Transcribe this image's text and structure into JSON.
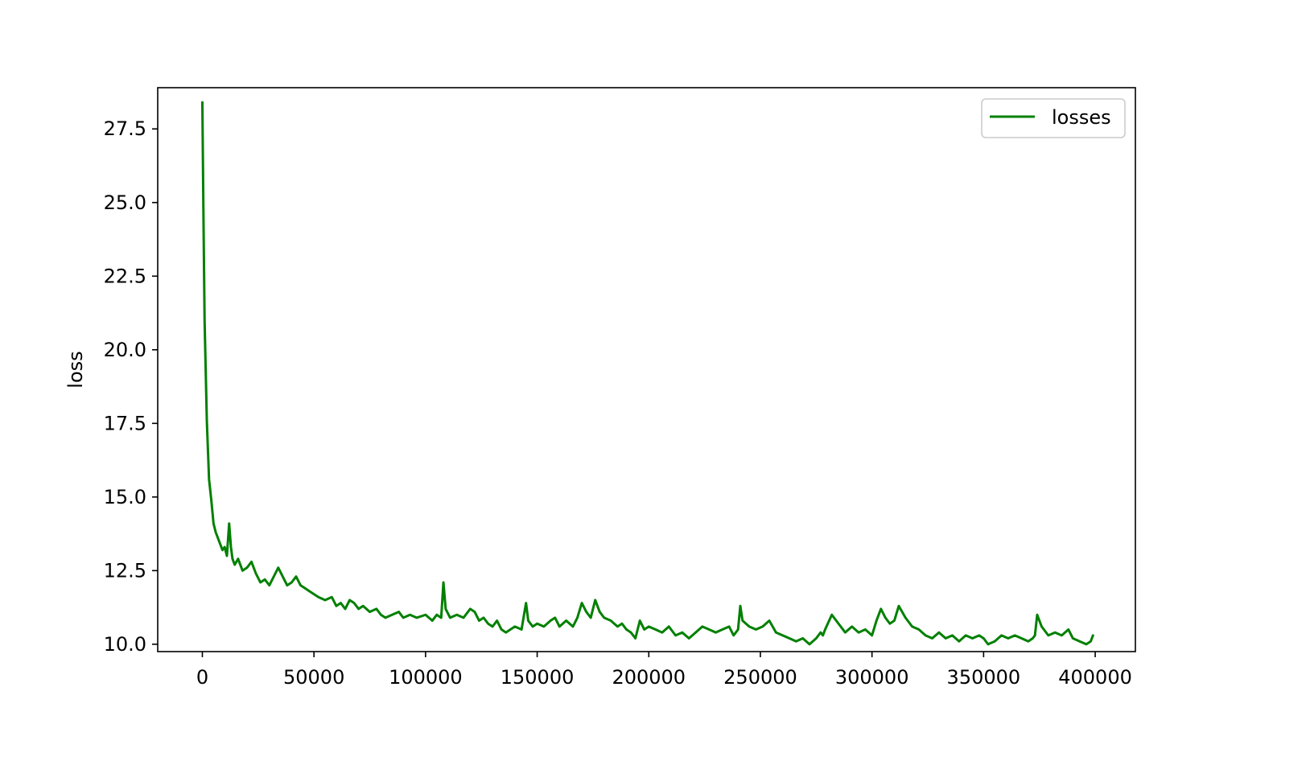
{
  "chart_data": {
    "type": "line",
    "title": "",
    "xlabel": "",
    "ylabel": "loss",
    "xlim": [
      -20000,
      418000
    ],
    "ylim": [
      9.75,
      28.9
    ],
    "x_ticks": [
      0,
      50000,
      100000,
      150000,
      200000,
      250000,
      300000,
      350000,
      400000
    ],
    "x_tick_labels": [
      "0",
      "50000",
      "100000",
      "150000",
      "200000",
      "250000",
      "300000",
      "350000",
      "400000"
    ],
    "y_ticks": [
      10.0,
      12.5,
      15.0,
      17.5,
      20.0,
      22.5,
      25.0,
      27.5
    ],
    "y_tick_labels": [
      "10.0",
      "12.5",
      "15.0",
      "17.5",
      "20.0",
      "22.5",
      "25.0",
      "27.5"
    ],
    "grid": false,
    "legend_position": "top-right",
    "series": [
      {
        "name": "losses",
        "color": "#008000",
        "x": [
          0,
          500,
          1000,
          1500,
          2000,
          2500,
          3000,
          4000,
          5000,
          6000,
          7000,
          8000,
          9000,
          10000,
          11000,
          12000,
          12800,
          13500,
          14500,
          16000,
          18000,
          20000,
          22000,
          24000,
          26000,
          28000,
          30000,
          32000,
          34000,
          36000,
          38000,
          40000,
          42000,
          44000,
          46000,
          48000,
          50000,
          52000,
          55000,
          58000,
          60000,
          62000,
          64000,
          66000,
          68000,
          70000,
          72000,
          75000,
          78000,
          80000,
          82000,
          85000,
          88000,
          90000,
          93000,
          96000,
          100000,
          103000,
          105000,
          107000,
          108000,
          109000,
          111000,
          114000,
          117000,
          120000,
          122000,
          124000,
          126000,
          128000,
          130000,
          132000,
          134000,
          136000,
          138000,
          140000,
          143000,
          145000,
          146000,
          148000,
          150000,
          153000,
          156000,
          158000,
          160000,
          163000,
          166000,
          168000,
          170000,
          172000,
          174000,
          176000,
          178000,
          180000,
          183000,
          186000,
          188000,
          190000,
          192000,
          194000,
          196000,
          198000,
          200000,
          203000,
          206000,
          209000,
          212000,
          215000,
          218000,
          221000,
          224000,
          227000,
          230000,
          233000,
          236000,
          238000,
          240000,
          241000,
          242000,
          245000,
          248000,
          251000,
          254000,
          257000,
          260000,
          263000,
          266000,
          269000,
          272000,
          275000,
          277000,
          278000,
          279000,
          282000,
          285000,
          288000,
          291000,
          294000,
          297000,
          300000,
          302000,
          304000,
          306000,
          308000,
          310000,
          312000,
          315000,
          318000,
          321000,
          324000,
          327000,
          330000,
          333000,
          336000,
          339000,
          342000,
          345000,
          348000,
          350000,
          352000,
          355000,
          358000,
          361000,
          364000,
          367000,
          370000,
          372000,
          373000,
          374000,
          376000,
          379000,
          382000,
          385000,
          388000,
          390000,
          393000,
          396000,
          398000,
          399000
        ],
        "y": [
          28.4,
          24.5,
          21.0,
          19.3,
          17.6,
          16.6,
          15.6,
          14.9,
          14.1,
          13.8,
          13.6,
          13.4,
          13.2,
          13.3,
          13.0,
          14.1,
          13.3,
          12.9,
          12.7,
          12.9,
          12.5,
          12.6,
          12.8,
          12.4,
          12.1,
          12.2,
          12.0,
          12.3,
          12.6,
          12.3,
          12.0,
          12.1,
          12.3,
          12.0,
          11.9,
          11.8,
          11.7,
          11.6,
          11.5,
          11.6,
          11.3,
          11.4,
          11.2,
          11.5,
          11.4,
          11.2,
          11.3,
          11.1,
          11.2,
          11.0,
          10.9,
          11.0,
          11.1,
          10.9,
          11.0,
          10.9,
          11.0,
          10.8,
          11.0,
          10.9,
          12.1,
          11.2,
          10.9,
          11.0,
          10.9,
          11.2,
          11.1,
          10.8,
          10.9,
          10.7,
          10.6,
          10.8,
          10.5,
          10.4,
          10.5,
          10.6,
          10.5,
          11.4,
          10.8,
          10.6,
          10.7,
          10.6,
          10.8,
          10.9,
          10.6,
          10.8,
          10.6,
          10.9,
          11.4,
          11.1,
          10.9,
          11.5,
          11.1,
          10.9,
          10.8,
          10.6,
          10.7,
          10.5,
          10.4,
          10.2,
          10.8,
          10.5,
          10.6,
          10.5,
          10.4,
          10.6,
          10.3,
          10.4,
          10.2,
          10.4,
          10.6,
          10.5,
          10.4,
          10.5,
          10.6,
          10.3,
          10.5,
          11.3,
          10.8,
          10.6,
          10.5,
          10.6,
          10.8,
          10.4,
          10.3,
          10.2,
          10.1,
          10.2,
          10.0,
          10.2,
          10.4,
          10.3,
          10.5,
          11.0,
          10.7,
          10.4,
          10.6,
          10.4,
          10.5,
          10.3,
          10.8,
          11.2,
          10.9,
          10.7,
          10.8,
          11.3,
          10.9,
          10.6,
          10.5,
          10.3,
          10.2,
          10.4,
          10.2,
          10.3,
          10.1,
          10.3,
          10.2,
          10.3,
          10.2,
          10.0,
          10.1,
          10.3,
          10.2,
          10.3,
          10.2,
          10.1,
          10.2,
          10.3,
          11.0,
          10.6,
          10.3,
          10.4,
          10.3,
          10.5,
          10.2,
          10.1,
          10.0,
          10.1,
          10.3
        ]
      }
    ]
  }
}
